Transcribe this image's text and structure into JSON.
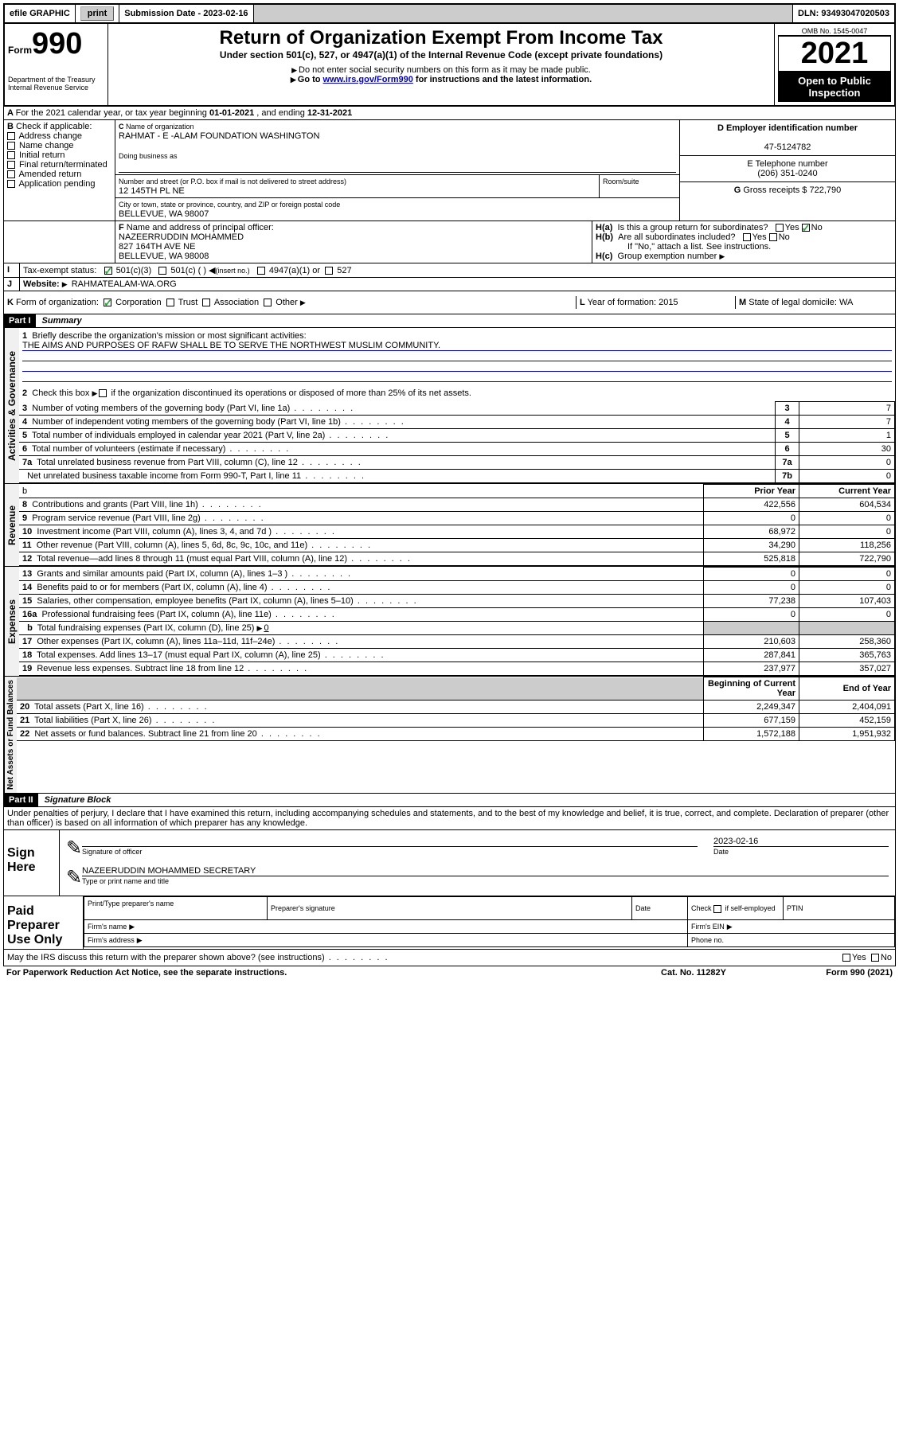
{
  "topbar": {
    "efile": "efile GRAPHIC",
    "print": "print",
    "sub_label": "Submission Date -",
    "sub_date": "2023-02-16",
    "dln_label": "DLN:",
    "dln": "93493047020503"
  },
  "header": {
    "form_prefix": "Form",
    "form_number": "990",
    "dept": "Department of the Treasury",
    "irs": "Internal Revenue Service",
    "title": "Return of Organization Exempt From Income Tax",
    "subtitle": "Under section 501(c), 527, or 4947(a)(1) of the Internal Revenue Code (except private foundations)",
    "note1": "Do not enter social security numbers on this form as it may be made public.",
    "note2_pre": "Go to ",
    "note2_link": "www.irs.gov/Form990",
    "note2_post": " for instructions and the latest information.",
    "omb_label": "OMB No.",
    "omb": "1545-0047",
    "year": "2021",
    "public": "Open to Public Inspection"
  },
  "sectionA": {
    "period_label": "For the 2021 calendar year, or tax year beginning ",
    "period_start": "01-01-2021",
    "period_mid": " , and ending ",
    "period_end": "12-31-2021",
    "b_label": "B",
    "b_text": "Check if applicable:",
    "b_opts": [
      "Address change",
      "Name change",
      "Initial return",
      "Final return/terminated",
      "Amended return",
      "Application pending"
    ],
    "c_label": "C",
    "c_name_label": "Name of organization",
    "c_name": "RAHMAT - E -ALAM FOUNDATION WASHINGTON",
    "dba_label": "Doing business as",
    "street_label": "Number and street (or P.O. box if mail is not delivered to street address)",
    "street": "12 145TH PL NE",
    "room_label": "Room/suite",
    "city_label": "City or town, state or province, country, and ZIP or foreign postal code",
    "city": "BELLEVUE, WA  98007",
    "d_label": "D Employer identification number",
    "d_ein": "47-5124782",
    "e_label": "E Telephone number",
    "e_phone": "(206) 351-0240",
    "g_label": "G",
    "g_text": "Gross receipts $",
    "g_amount": "722,790",
    "f_label": "F",
    "f_text": "Name and address of principal officer:",
    "f_name": "NAZEERRUDDIN MOHAMMED",
    "f_addr1": "827 164TH AVE NE",
    "f_addr2": "BELLEVUE, WA  98008",
    "ha_label": "H(a)",
    "ha_text": "Is this a group return for subordinates?",
    "hb_label": "H(b)",
    "hb_text": "Are all subordinates included?",
    "h_note": "If \"No,\" attach a list. See instructions.",
    "hc_label": "H(c)",
    "hc_text": "Group exemption number",
    "yes": "Yes",
    "no": "No",
    "i_label": "I",
    "i_text": "Tax-exempt status:",
    "i_501c3": "501(c)(3)",
    "i_501c": "501(c) (  )",
    "i_insert": "(insert no.)",
    "i_4947": "4947(a)(1) or",
    "i_527": "527",
    "j_label": "J",
    "j_text": "Website:",
    "j_url": "RAHMATEALAM-WA.ORG",
    "k_label": "K",
    "k_text": "Form of organization:",
    "k_opts": [
      "Corporation",
      "Trust",
      "Association",
      "Other"
    ],
    "l_label": "L",
    "l_text": "Year of formation:",
    "l_year": "2015",
    "m_label": "M",
    "m_text": "State of legal domicile:",
    "m_state": "WA"
  },
  "part1": {
    "label": "Part I",
    "title": "Summary",
    "sec_governance": "Activities & Governance",
    "sec_revenue": "Revenue",
    "sec_expenses": "Expenses",
    "sec_netassets": "Net Assets or Fund Balances",
    "q1_label": "1",
    "q1_text": "Briefly describe the organization's mission or most significant activities:",
    "q1_answer": "THE AIMS AND PURPOSES OF RAFW SHALL BE TO SERVE THE NORTHWEST MUSLIM COMMUNITY.",
    "q2_label": "2",
    "q2_text": "Check this box",
    "q2_post": "if the organization discontinued its operations or disposed of more than 25% of its net assets.",
    "rows_gov": [
      {
        "n": "3",
        "t": "Number of voting members of the governing body (Part VI, line 1a)",
        "box": "3",
        "val": "7"
      },
      {
        "n": "4",
        "t": "Number of independent voting members of the governing body (Part VI, line 1b)",
        "box": "4",
        "val": "7"
      },
      {
        "n": "5",
        "t": "Total number of individuals employed in calendar year 2021 (Part V, line 2a)",
        "box": "5",
        "val": "1"
      },
      {
        "n": "6",
        "t": "Total number of volunteers (estimate if necessary)",
        "box": "6",
        "val": "30"
      },
      {
        "n": "7a",
        "t": "Total unrelated business revenue from Part VIII, column (C), line 12",
        "box": "7a",
        "val": "0"
      },
      {
        "n": "",
        "t": "Net unrelated business taxable income from Form 990-T, Part I, line 11",
        "box": "7b",
        "val": "0"
      }
    ],
    "prior_year": "Prior Year",
    "current_year": "Current Year",
    "rows_rev": [
      {
        "n": "8",
        "t": "Contributions and grants (Part VIII, line 1h)",
        "p": "422,556",
        "c": "604,534"
      },
      {
        "n": "9",
        "t": "Program service revenue (Part VIII, line 2g)",
        "p": "0",
        "c": "0"
      },
      {
        "n": "10",
        "t": "Investment income (Part VIII, column (A), lines 3, 4, and 7d )",
        "p": "68,972",
        "c": "0"
      },
      {
        "n": "11",
        "t": "Other revenue (Part VIII, column (A), lines 5, 6d, 8c, 9c, 10c, and 11e)",
        "p": "34,290",
        "c": "118,256"
      },
      {
        "n": "12",
        "t": "Total revenue—add lines 8 through 11 (must equal Part VIII, column (A), line 12)",
        "p": "525,818",
        "c": "722,790"
      }
    ],
    "rows_exp": [
      {
        "n": "13",
        "t": "Grants and similar amounts paid (Part IX, column (A), lines 1–3 )",
        "p": "0",
        "c": "0"
      },
      {
        "n": "14",
        "t": "Benefits paid to or for members (Part IX, column (A), line 4)",
        "p": "0",
        "c": "0"
      },
      {
        "n": "15",
        "t": "Salaries, other compensation, employee benefits (Part IX, column (A), lines 5–10)",
        "p": "77,238",
        "c": "107,403"
      },
      {
        "n": "16a",
        "t": "Professional fundraising fees (Part IX, column (A), line 11e)",
        "p": "0",
        "c": "0"
      }
    ],
    "row_16b_n": "b",
    "row_16b_t": "Total fundraising expenses (Part IX, column (D), line 25)",
    "row_16b_v": "0",
    "rows_exp2": [
      {
        "n": "17",
        "t": "Other expenses (Part IX, column (A), lines 11a–11d, 11f–24e)",
        "p": "210,603",
        "c": "258,360"
      },
      {
        "n": "18",
        "t": "Total expenses. Add lines 13–17 (must equal Part IX, column (A), line 25)",
        "p": "287,841",
        "c": "365,763"
      },
      {
        "n": "19",
        "t": "Revenue less expenses. Subtract line 18 from line 12",
        "p": "237,977",
        "c": "357,027"
      }
    ],
    "begin_year": "Beginning of Current Year",
    "end_year": "End of Year",
    "rows_net": [
      {
        "n": "20",
        "t": "Total assets (Part X, line 16)",
        "p": "2,249,347",
        "c": "2,404,091"
      },
      {
        "n": "21",
        "t": "Total liabilities (Part X, line 26)",
        "p": "677,159",
        "c": "452,159"
      },
      {
        "n": "22",
        "t": "Net assets or fund balances. Subtract line 21 from line 20",
        "p": "1,572,188",
        "c": "1,951,932"
      }
    ]
  },
  "part2": {
    "label": "Part II",
    "title": "Signature Block",
    "declaration": "Under penalties of perjury, I declare that I have examined this return, including accompanying schedules and statements, and to the best of my knowledge and belief, it is true, correct, and complete. Declaration of preparer (other than officer) is based on all information of which preparer has any knowledge.",
    "sign_here": "Sign Here",
    "sig_officer": "Signature of officer",
    "sig_date": "Date",
    "sig_date_val": "2023-02-16",
    "sig_name": "NAZEERUDDIN MOHAMMED SECRETARY",
    "sig_name_label": "Type or print name and title",
    "paid": "Paid Preparer Use Only",
    "prep_name": "Print/Type preparer's name",
    "prep_sig": "Preparer's signature",
    "prep_date": "Date",
    "prep_check": "Check",
    "prep_if": "if self-employed",
    "ptin": "PTIN",
    "firm_name": "Firm's name",
    "firm_ein": "Firm's EIN",
    "firm_addr": "Firm's address",
    "phone": "Phone no."
  },
  "footer": {
    "discuss": "May the IRS discuss this return with the preparer shown above? (see instructions)",
    "paperwork": "For Paperwork Reduction Act Notice, see the separate instructions.",
    "cat": "Cat. No. 11282Y",
    "form": "Form",
    "form_no": "990",
    "form_year": "(2021)"
  }
}
